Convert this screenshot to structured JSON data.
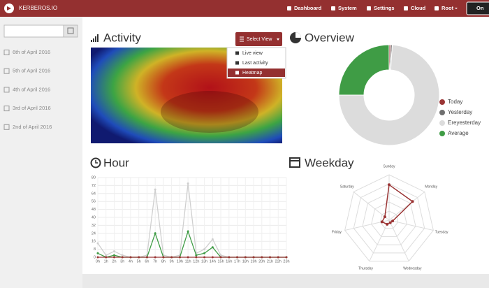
{
  "navbar": {
    "brand": "KERBEROS.IO",
    "menu": [
      "Dashboard",
      "System",
      "Settings",
      "Cloud",
      "Root"
    ],
    "toggle": "On"
  },
  "sidebar": {
    "dates": [
      "6th of April 2016",
      "5th of April 2016",
      "4th of April 2016",
      "3rd of April 2016",
      "2nd of April 2016"
    ]
  },
  "activity": {
    "title": "Activity",
    "button": "Select View",
    "options": [
      "Live view",
      "Last activity",
      "Heatmap"
    ],
    "selected": 2
  },
  "overview": {
    "title": "Overview",
    "type": "donut",
    "series": [
      {
        "name": "Today",
        "color": "#9b3535",
        "value": 0.5
      },
      {
        "name": "Yesterday",
        "color": "#6f6f6f",
        "value": 0.5
      },
      {
        "name": "Ereyesterday",
        "color": "#dcdcdc",
        "value": 74
      },
      {
        "name": "Average",
        "color": "#3f9c45",
        "value": 25
      }
    ]
  },
  "hour": {
    "title": "Hour",
    "type": "line",
    "x": [
      "0h",
      "1h",
      "2h",
      "3h",
      "4h",
      "5h",
      "6h",
      "7h",
      "8h",
      "9h",
      "10h",
      "11h",
      "12h",
      "13h",
      "14h",
      "15h",
      "16h",
      "17h",
      "18h",
      "19h",
      "20h",
      "21h",
      "22h",
      "23h"
    ],
    "ylim": [
      0,
      80
    ],
    "yticks": [
      0,
      8,
      16,
      24,
      32,
      40,
      48,
      56,
      64,
      72,
      80
    ],
    "grid": true,
    "series": [
      {
        "color": "#cfcfcf",
        "values": [
          14,
          2,
          6,
          2,
          0,
          0,
          2,
          68,
          2,
          0,
          2,
          74,
          4,
          8,
          18,
          2,
          0,
          0,
          0,
          0,
          0,
          0,
          0,
          0
        ]
      },
      {
        "color": "#3f9c45",
        "values": [
          4,
          0,
          2,
          0,
          0,
          0,
          0,
          24,
          0,
          0,
          0,
          26,
          2,
          4,
          10,
          0,
          0,
          0,
          0,
          0,
          0,
          0,
          0,
          0
        ]
      },
      {
        "color": "#9b3535",
        "values": [
          0,
          0,
          0,
          0,
          0,
          0,
          0,
          0,
          0,
          0,
          0,
          0,
          0,
          0,
          0,
          0,
          0,
          0,
          0,
          0,
          0,
          0,
          0,
          0
        ]
      }
    ]
  },
  "weekday": {
    "title": "Weekday",
    "type": "radar",
    "categories": [
      "Sunday",
      "Monday",
      "Tuesday",
      "Wednesday",
      "Thursday",
      "Friday",
      "Saturday"
    ],
    "rlim": [
      0,
      5
    ],
    "rticks": [
      1,
      2,
      3,
      4,
      5
    ],
    "series": [
      {
        "color": "#9b3535",
        "values": [
          3.9,
          3.3,
          0.4,
          0.3,
          0.5,
          0.8,
          0.6
        ]
      }
    ]
  }
}
